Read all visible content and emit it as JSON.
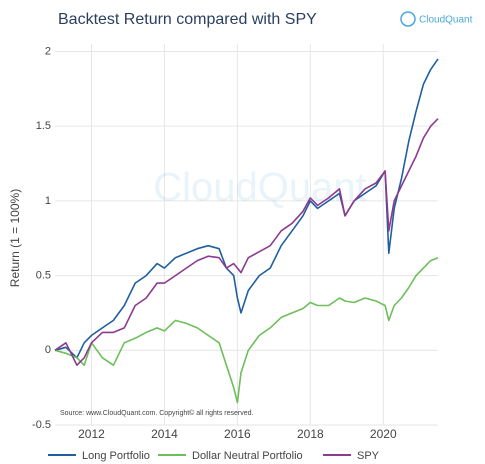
{
  "chart_data": {
    "type": "line",
    "title": "Backtest Return compared with SPY",
    "logo": "CloudQuant",
    "watermark": "CloudQuant",
    "annotation": "Source: www.CloudQuant.com. Copyright© all rights reserved.",
    "y_label": "Return (1 = 100%)",
    "x": [
      2011.0,
      2011.3,
      2011.6,
      2011.8,
      2012.0,
      2012.3,
      2012.6,
      2012.9,
      2013.2,
      2013.5,
      2013.8,
      2014.0,
      2014.3,
      2014.6,
      2014.9,
      2015.2,
      2015.5,
      2015.7,
      2015.9,
      2016.0,
      2016.1,
      2016.3,
      2016.6,
      2016.9,
      2017.2,
      2017.5,
      2017.8,
      2018.0,
      2018.2,
      2018.5,
      2018.8,
      2018.95,
      2019.2,
      2019.5,
      2019.8,
      2020.05,
      2020.15,
      2020.3,
      2020.5,
      2020.7,
      2020.9,
      2021.1,
      2021.3,
      2021.5
    ],
    "series": [
      {
        "name": "Long Portfolio",
        "color": "#1f5fa0",
        "values": [
          0,
          0.02,
          -0.05,
          0.05,
          0.1,
          0.15,
          0.2,
          0.3,
          0.45,
          0.5,
          0.58,
          0.55,
          0.62,
          0.65,
          0.68,
          0.7,
          0.68,
          0.55,
          0.5,
          0.35,
          0.25,
          0.4,
          0.5,
          0.55,
          0.7,
          0.8,
          0.9,
          1.0,
          0.95,
          1.0,
          1.05,
          0.9,
          1.0,
          1.05,
          1.1,
          1.2,
          0.65,
          0.95,
          1.15,
          1.4,
          1.6,
          1.78,
          1.88,
          1.95
        ]
      },
      {
        "name": "Dollar Neutral Portfolio",
        "color": "#6cbf5a",
        "values": [
          0,
          -0.02,
          -0.05,
          -0.1,
          0.05,
          -0.05,
          -0.1,
          0.05,
          0.08,
          0.12,
          0.15,
          0.13,
          0.2,
          0.18,
          0.15,
          0.1,
          0.05,
          -0.1,
          -0.25,
          -0.35,
          -0.15,
          0,
          0.1,
          0.15,
          0.22,
          0.25,
          0.28,
          0.32,
          0.3,
          0.3,
          0.35,
          0.33,
          0.32,
          0.35,
          0.33,
          0.3,
          0.2,
          0.3,
          0.35,
          0.42,
          0.5,
          0.55,
          0.6,
          0.62
        ]
      },
      {
        "name": "SPY",
        "color": "#8e3a8e",
        "values": [
          0,
          0.05,
          -0.1,
          -0.05,
          0.05,
          0.12,
          0.12,
          0.15,
          0.3,
          0.35,
          0.45,
          0.45,
          0.5,
          0.55,
          0.6,
          0.63,
          0.62,
          0.55,
          0.58,
          0.55,
          0.52,
          0.62,
          0.66,
          0.7,
          0.8,
          0.85,
          0.93,
          1.02,
          0.97,
          1.02,
          1.08,
          0.9,
          1.0,
          1.08,
          1.12,
          1.2,
          0.8,
          1.0,
          1.1,
          1.2,
          1.3,
          1.42,
          1.5,
          1.55
        ]
      }
    ],
    "xlim": [
      2011,
      2021.5
    ],
    "xticks": [
      2012,
      2014,
      2016,
      2018,
      2020
    ],
    "ylim": [
      -0.5,
      2.05
    ],
    "yticks": [
      -0.5,
      0,
      0.5,
      1,
      1.5,
      2
    ],
    "grid": true,
    "legend": "bottom"
  }
}
